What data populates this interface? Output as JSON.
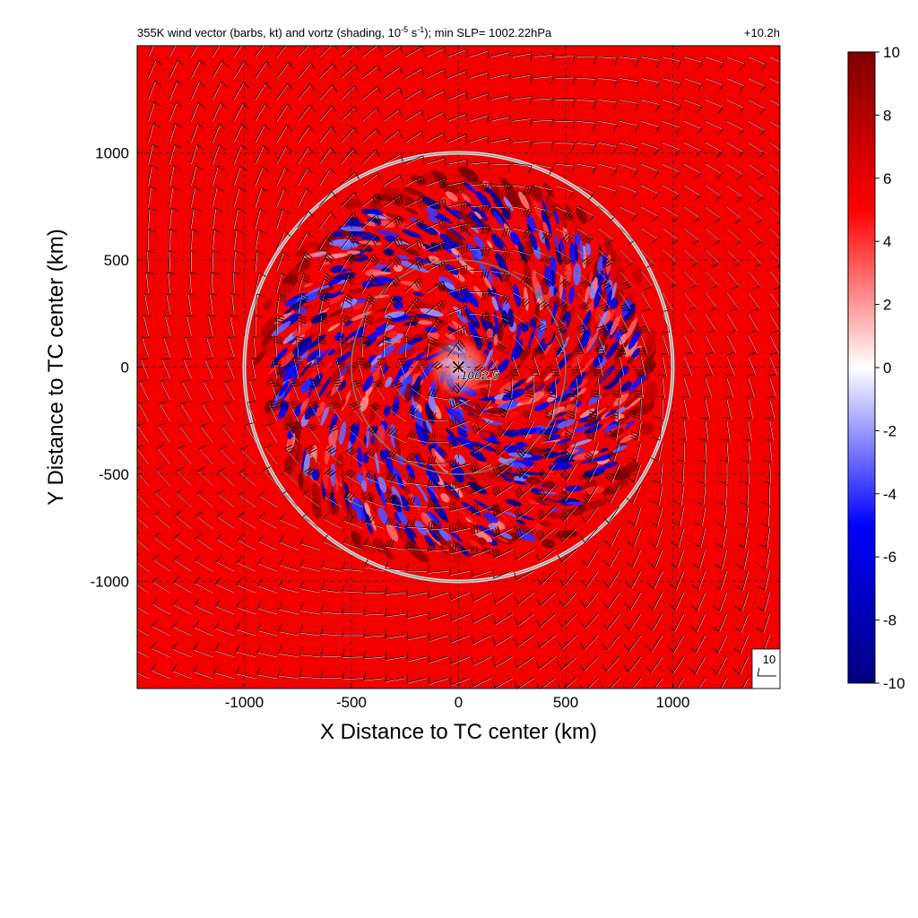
{
  "chart_data": {
    "type": "heatmap",
    "title": "355K wind vector (barbs, kt) and vortz (shading, 10",
    "title_sup1": "-5",
    "title_mid": " s",
    "title_sup2": "-1",
    "title_end": "); min SLP= 1002.22hPa",
    "time_label": "+10.2h",
    "xlabel": "X Distance to TC center (km)",
    "ylabel": "Y Distance to TC center (km)",
    "xlim": [
      -1500,
      1500
    ],
    "ylim": [
      -1500,
      1500
    ],
    "xticks": [
      -1000,
      -500,
      0,
      500,
      1000
    ],
    "yticks": [
      -1000,
      -500,
      0,
      500,
      1000
    ],
    "grid": true,
    "colorbar": {
      "min": -10,
      "max": 10,
      "ticks": [
        -10,
        -8,
        -6,
        -4,
        -2,
        0,
        2,
        4,
        6,
        8,
        10
      ],
      "colors": [
        "#00007f",
        "#0000ff",
        "#ffffff",
        "#ff0000",
        "#7f0000"
      ]
    },
    "range_rings_km": [
      500,
      1000
    ],
    "center_marker": "×",
    "center_contour_label": "1002.5",
    "reference_barb_label": "10",
    "background_vorticity": 5.5
  }
}
